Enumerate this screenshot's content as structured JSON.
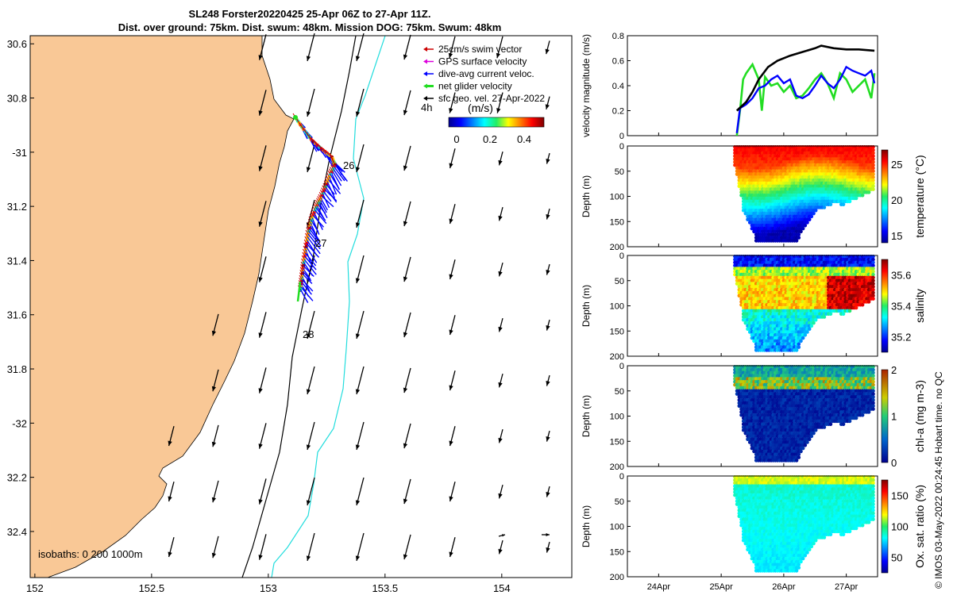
{
  "title": {
    "line1": "SL248 Forster20220425 25-Apr 06Z to 27-Apr 11Z.",
    "line2": "Dist. over ground: 75km. Dist. swum: 48km. Mission DOG: 75km. Swum: 48km"
  },
  "map": {
    "lat_ticks": [
      "30.6",
      "30.8",
      "-31",
      "31.2",
      "31.4",
      "31.6",
      "31.8",
      "-32",
      "32.2",
      "32.4"
    ],
    "lat_values": [
      -30.6,
      -30.8,
      -31.0,
      -31.2,
      -31.4,
      -31.6,
      -31.8,
      -32.0,
      -32.2,
      -32.4
    ],
    "lon_ticks": [
      "152",
      "152.5",
      "153",
      "153.5",
      "154"
    ],
    "lon_values": [
      152,
      152.5,
      153,
      153.5,
      154
    ],
    "legend": [
      {
        "label": "25cm/s swim vector",
        "color": "#cc0000"
      },
      {
        "label": "GPS surface velocity",
        "color": "#dd00dd"
      },
      {
        "label": "dive-avg current veloc.",
        "color": "#0000ff"
      },
      {
        "label": "net glider velocity",
        "color": "#22dd22"
      },
      {
        "label": "sfc geo. vel. 27-Apr-2022",
        "color": "#000000"
      }
    ],
    "legend_4h": "4h",
    "colorbar_title": "(m/s)",
    "colorbar_ticks": [
      "0",
      "0.2",
      "0.4"
    ],
    "day_labels": [
      "26",
      "27",
      "28"
    ],
    "isobaths_label": "isobaths: 0   200  1000m",
    "colors": {
      "land": "#f9c896",
      "isobath200": "#000000",
      "isobath1000": "#22dddd"
    }
  },
  "chart_data": [
    {
      "type": "line",
      "title": "velocity magnitude",
      "ylabel": "velocity magnitude (m/s)",
      "ylim": [
        0,
        0.8
      ],
      "yticks": [
        "0",
        "0.2",
        "0.4",
        "0.6",
        "0.8"
      ],
      "series": [
        {
          "name": "net glider velocity",
          "color": "#22dd22",
          "x": [
            25.25,
            25.3,
            25.35,
            25.4,
            25.5,
            25.6,
            25.65,
            25.7,
            25.8,
            25.9,
            26.0,
            26.1,
            26.2,
            26.3,
            26.4,
            26.5,
            26.6,
            26.7,
            26.8,
            26.9,
            27.0,
            27.1,
            27.2,
            27.3,
            27.4,
            27.45
          ],
          "y": [
            0.0,
            0.2,
            0.45,
            0.5,
            0.57,
            0.45,
            0.2,
            0.47,
            0.4,
            0.42,
            0.35,
            0.4,
            0.3,
            0.32,
            0.38,
            0.45,
            0.5,
            0.42,
            0.3,
            0.5,
            0.45,
            0.35,
            0.4,
            0.45,
            0.3,
            0.5
          ]
        },
        {
          "name": "dive-avg current",
          "color": "#0000ff",
          "x": [
            25.25,
            25.3,
            25.4,
            25.5,
            25.6,
            25.7,
            25.8,
            25.9,
            26.0,
            26.1,
            26.2,
            26.3,
            26.4,
            26.5,
            26.6,
            26.7,
            26.8,
            26.9,
            27.0,
            27.1,
            27.2,
            27.3,
            27.4,
            27.45
          ],
          "y": [
            0.02,
            0.22,
            0.25,
            0.3,
            0.38,
            0.4,
            0.45,
            0.48,
            0.42,
            0.45,
            0.32,
            0.3,
            0.33,
            0.4,
            0.48,
            0.42,
            0.38,
            0.45,
            0.55,
            0.52,
            0.5,
            0.48,
            0.52,
            0.42
          ]
        },
        {
          "name": "sfc geo. vel.",
          "color": "#000000",
          "x": [
            25.25,
            25.4,
            25.5,
            25.6,
            25.75,
            25.9,
            26.1,
            26.3,
            26.5,
            26.6,
            26.8,
            27.0,
            27.2,
            27.45
          ],
          "y": [
            0.2,
            0.27,
            0.35,
            0.45,
            0.55,
            0.6,
            0.64,
            0.67,
            0.7,
            0.72,
            0.7,
            0.69,
            0.69,
            0.68
          ]
        }
      ]
    },
    {
      "type": "scatter",
      "title": "temperature",
      "ylabel": "Depth (m)",
      "clabel": "temperature (°C)",
      "ylim": [
        0,
        200
      ],
      "yticks": [
        "0",
        "50",
        "100",
        "150",
        "200"
      ],
      "cticks": [
        "15",
        "20",
        "25"
      ],
      "clim": [
        14,
        27
      ]
    },
    {
      "type": "scatter",
      "title": "salinity",
      "ylabel": "Depth (m)",
      "clabel": "salinity",
      "ylim": [
        0,
        200
      ],
      "yticks": [
        "0",
        "50",
        "100",
        "150",
        "200"
      ],
      "cticks": [
        "35.2",
        "35.4",
        "35.6"
      ],
      "clim": [
        35.1,
        35.7
      ]
    },
    {
      "type": "scatter",
      "title": "chl-a",
      "ylabel": "Depth (m)",
      "clabel": "chl-a (mg m-3)",
      "ylim": [
        0,
        200
      ],
      "yticks": [
        "0",
        "50",
        "100",
        "150",
        "200"
      ],
      "cticks": [
        "0",
        "1",
        "2"
      ],
      "clim": [
        0,
        2
      ]
    },
    {
      "type": "scatter",
      "title": "oxygen saturation",
      "ylabel": "Depth (m)",
      "clabel": "Ox. sat. ratio (%)",
      "ylim": [
        0,
        200
      ],
      "yticks": [
        "0",
        "50",
        "100",
        "150",
        "200"
      ],
      "cticks": [
        "50",
        "100",
        "150"
      ],
      "clim": [
        25,
        175
      ],
      "xticks": [
        "24Apr",
        "25Apr",
        "26Apr",
        "27Apr"
      ],
      "xvalues": [
        24,
        25,
        26,
        27
      ],
      "xlim": [
        23.5,
        27.5
      ]
    }
  ],
  "footer": {
    "stamp": "© IMOS 03-May-2022 00:24:45 Hobart time. no QC"
  }
}
